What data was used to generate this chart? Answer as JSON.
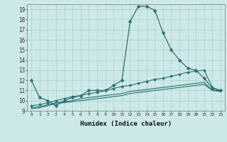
{
  "xlabel": "Humidex (Indice chaleur)",
  "bg_color": "#cce9e8",
  "grid_color": "#aacfcf",
  "line_color": "#2a7070",
  "xlim": [
    -0.5,
    23.5
  ],
  "ylim": [
    9,
    19.5
  ],
  "yticks": [
    9,
    10,
    11,
    12,
    13,
    14,
    15,
    16,
    17,
    18,
    19
  ],
  "xticks": [
    0,
    1,
    2,
    3,
    4,
    5,
    6,
    7,
    8,
    9,
    10,
    11,
    12,
    13,
    14,
    15,
    16,
    17,
    18,
    19,
    20,
    21,
    22,
    23
  ],
  "series": [
    {
      "x": [
        0,
        1,
        2,
        3,
        4,
        5,
        6,
        7,
        8,
        9,
        10,
        11,
        12,
        13,
        14,
        15,
        16,
        17,
        18,
        19,
        20,
        21,
        22,
        23
      ],
      "y": [
        12.0,
        10.3,
        10.0,
        9.5,
        10.0,
        10.3,
        10.5,
        11.0,
        11.0,
        11.0,
        11.5,
        12.0,
        17.8,
        19.3,
        19.3,
        18.9,
        16.7,
        15.0,
        14.0,
        13.2,
        13.0,
        12.2,
        11.2,
        11.0
      ],
      "marker": "D",
      "marker_size": 2.5,
      "linewidth": 0.9
    },
    {
      "x": [
        0,
        1,
        2,
        3,
        4,
        5,
        6,
        7,
        8,
        9,
        10,
        11,
        12,
        13,
        14,
        15,
        16,
        17,
        18,
        19,
        20,
        21,
        22,
        23
      ],
      "y": [
        9.5,
        9.6,
        9.8,
        10.0,
        10.2,
        10.4,
        10.5,
        10.7,
        10.8,
        11.0,
        11.2,
        11.4,
        11.5,
        11.7,
        11.9,
        12.1,
        12.2,
        12.4,
        12.6,
        12.8,
        12.9,
        13.0,
        11.3,
        11.0
      ],
      "marker": "D",
      "marker_size": 2,
      "linewidth": 0.8
    },
    {
      "x": [
        0,
        1,
        2,
        3,
        4,
        5,
        6,
        7,
        8,
        9,
        10,
        11,
        12,
        13,
        14,
        15,
        16,
        17,
        18,
        19,
        20,
        21,
        22,
        23
      ],
      "y": [
        9.3,
        9.4,
        9.6,
        9.8,
        9.9,
        10.0,
        10.2,
        10.3,
        10.4,
        10.5,
        10.6,
        10.7,
        10.9,
        11.0,
        11.1,
        11.2,
        11.3,
        11.4,
        11.5,
        11.6,
        11.7,
        11.8,
        11.0,
        11.0
      ],
      "marker": null,
      "marker_size": 0,
      "linewidth": 0.8
    },
    {
      "x": [
        0,
        1,
        2,
        3,
        4,
        5,
        6,
        7,
        8,
        9,
        10,
        11,
        12,
        13,
        14,
        15,
        16,
        17,
        18,
        19,
        20,
        21,
        22,
        23
      ],
      "y": [
        9.2,
        9.3,
        9.5,
        9.7,
        9.8,
        9.9,
        10.0,
        10.1,
        10.2,
        10.3,
        10.4,
        10.5,
        10.7,
        10.8,
        10.9,
        11.0,
        11.1,
        11.2,
        11.3,
        11.4,
        11.5,
        11.6,
        11.0,
        10.9
      ],
      "marker": null,
      "marker_size": 0,
      "linewidth": 0.8
    }
  ]
}
